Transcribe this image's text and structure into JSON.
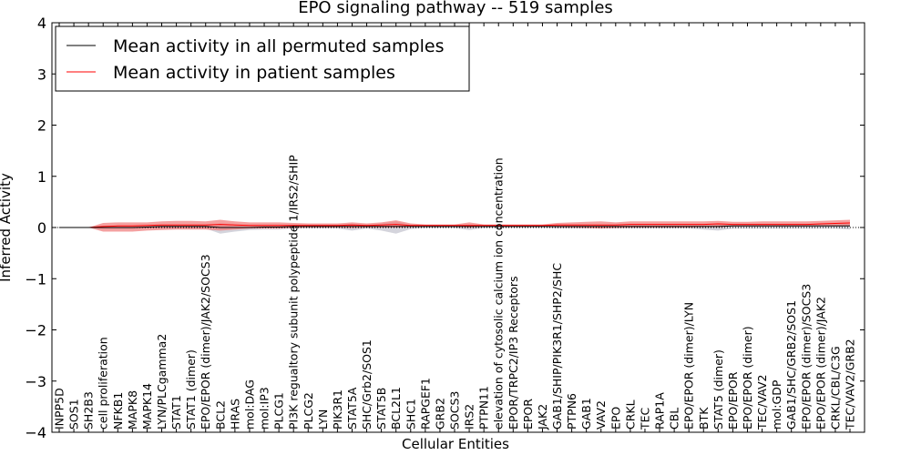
{
  "chart_data": {
    "type": "line",
    "title": "EPO signaling pathway -- 519 samples",
    "xlabel": "Cellular Entities",
    "ylabel": "Inferred Activity",
    "ylim": [
      -4,
      4
    ],
    "yticks": [
      "−4",
      "−3",
      "−2",
      "−1",
      "0",
      "1",
      "2",
      "3",
      "4"
    ],
    "grid": false,
    "legend_position": "top-left",
    "colors": {
      "permuted": "#000000",
      "patient": "#ff0000",
      "patient_band": "#f08080",
      "permuted_band": "#b0b0c0"
    },
    "categories": [
      "INPP5D",
      "SOS1",
      "SH2B3",
      "cell proliferation",
      "NFKB1",
      "MAPK8",
      "MAPK14",
      "LYN/PLCgamma2",
      "STAT1",
      "STAT1 (dimer)",
      "EPO/EPOR (dimer)/JAK2/SOCS3",
      "BCL2",
      "HRAS",
      "mol:DAG",
      "mol:IP3",
      "PLCG1",
      "PI3K regualtory subunit polypeptide 1/IRS2/SHIP",
      "PLCG2",
      "LYN",
      "PIK3R1",
      "STAT5A",
      "SHC/Grb2/SOS1",
      "STAT5B",
      "BCL2L1",
      "SHC1",
      "RAPGEF1",
      "GRB2",
      "SOCS3",
      "IRS2",
      "PTPN11",
      "elevation of cytosolic calcium ion concentration",
      "EPOR/TRPC2/IP3 Receptors",
      "EPOR",
      "JAK2",
      "GAB1/SHIP/PIK3R1/SHP2/SHC",
      "PTPN6",
      "GAB1",
      "VAV2",
      "EPO",
      "CRKL",
      "TEC",
      "RAP1A",
      "CBL",
      "EPO/EPOR (dimer)/LYN",
      "BTK",
      "STAT5 (dimer)",
      "EPO/EPOR",
      "EPO/EPOR (dimer)",
      "TEC/VAV2",
      "mol:GDP",
      "GAB1/SHC/GRB2/SOS1",
      "EPO/EPOR (dimer)/SOCS3",
      "EPO/EPOR (dimer)/JAK2",
      "CRKL/CBL/C3G",
      "TEC/VAV2/GRB2"
    ],
    "series": [
      {
        "name": "Mean activity in all permuted samples",
        "values": [
          0,
          0,
          0,
          0,
          0,
          0,
          0.01,
          0.02,
          0.02,
          0.02,
          0.02,
          0,
          0,
          0,
          0.01,
          0.01,
          0.02,
          0.02,
          0.02,
          0.02,
          0.02,
          0.02,
          0.02,
          0.02,
          0.02,
          0.02,
          0.02,
          0.02,
          0.02,
          0.02,
          0.02,
          0.02,
          0.02,
          0.02,
          0.02,
          0.02,
          0.02,
          0.02,
          0.02,
          0.02,
          0.02,
          0.02,
          0.02,
          0.02,
          0.02,
          0.02,
          0.03,
          0.03,
          0.03,
          0.03,
          0.03,
          0.03,
          0.03,
          0.03,
          0.03
        ],
        "band_low": [
          0,
          0,
          0,
          -0.03,
          -0.03,
          -0.03,
          -0.02,
          -0.02,
          -0.02,
          -0.02,
          -0.02,
          -0.12,
          -0.08,
          -0.05,
          -0.04,
          -0.04,
          -0.02,
          -0.02,
          -0.02,
          -0.02,
          -0.06,
          -0.02,
          -0.06,
          -0.12,
          -0.03,
          -0.01,
          -0.01,
          -0.01,
          -0.05,
          -0.01,
          0,
          0,
          0,
          0,
          -0.02,
          -0.02,
          -0.02,
          -0.02,
          -0.02,
          -0.02,
          -0.02,
          -0.02,
          -0.02,
          -0.02,
          -0.04,
          -0.06,
          -0.02,
          -0.02,
          -0.02,
          -0.02,
          -0.02,
          -0.02,
          -0.02,
          -0.02,
          -0.04
        ],
        "band_high": [
          0,
          0,
          0,
          0.03,
          0.03,
          0.03,
          0.04,
          0.04,
          0.04,
          0.04,
          0.04,
          0.08,
          0.06,
          0.05,
          0.05,
          0.05,
          0.04,
          0.04,
          0.04,
          0.04,
          0.08,
          0.04,
          0.08,
          0.12,
          0.05,
          0.04,
          0.04,
          0.04,
          0.06,
          0.04,
          0.04,
          0.04,
          0.04,
          0.04,
          0.05,
          0.05,
          0.05,
          0.05,
          0.05,
          0.06,
          0.06,
          0.06,
          0.06,
          0.06,
          0.06,
          0.08,
          0.06,
          0.06,
          0.06,
          0.06,
          0.06,
          0.06,
          0.06,
          0.06,
          0.07
        ]
      },
      {
        "name": "Mean activity in patient samples",
        "values": [
          0,
          0,
          0,
          0.02,
          0.03,
          0.03,
          0.04,
          0.05,
          0.05,
          0.05,
          0.05,
          0.06,
          0.05,
          0.04,
          0.04,
          0.04,
          0.04,
          0.04,
          0.04,
          0.04,
          0.05,
          0.04,
          0.05,
          0.06,
          0.04,
          0.04,
          0.04,
          0.04,
          0.04,
          0.04,
          0.04,
          0.04,
          0.04,
          0.04,
          0.05,
          0.05,
          0.05,
          0.05,
          0.05,
          0.06,
          0.06,
          0.06,
          0.06,
          0.06,
          0.06,
          0.07,
          0.06,
          0.06,
          0.06,
          0.06,
          0.06,
          0.06,
          0.07,
          0.08,
          0.09
        ],
        "band_low": [
          0,
          0,
          0,
          -0.08,
          -0.08,
          -0.08,
          -0.06,
          -0.05,
          -0.04,
          -0.04,
          -0.04,
          -0.06,
          -0.04,
          -0.02,
          -0.02,
          -0.02,
          -0.01,
          0,
          0,
          0,
          -0.01,
          0,
          0,
          0,
          0.01,
          0.02,
          0.02,
          0.02,
          0,
          0.02,
          0.02,
          0.02,
          0.02,
          0.02,
          0.01,
          0,
          -0.01,
          -0.02,
          -0.01,
          0,
          0,
          0,
          0,
          0,
          0.01,
          0.01,
          0.02,
          0.02,
          0.02,
          0.02,
          0.02,
          0.02,
          0.03,
          0.03,
          0.03
        ],
        "band_high": [
          0,
          0,
          0,
          0.09,
          0.1,
          0.1,
          0.1,
          0.12,
          0.13,
          0.13,
          0.12,
          0.15,
          0.12,
          0.1,
          0.1,
          0.1,
          0.09,
          0.08,
          0.08,
          0.08,
          0.1,
          0.08,
          0.1,
          0.14,
          0.08,
          0.06,
          0.06,
          0.06,
          0.1,
          0.06,
          0.06,
          0.06,
          0.06,
          0.06,
          0.09,
          0.1,
          0.11,
          0.12,
          0.1,
          0.12,
          0.12,
          0.12,
          0.12,
          0.12,
          0.12,
          0.13,
          0.11,
          0.11,
          0.12,
          0.12,
          0.12,
          0.12,
          0.13,
          0.14,
          0.15
        ]
      }
    ]
  }
}
